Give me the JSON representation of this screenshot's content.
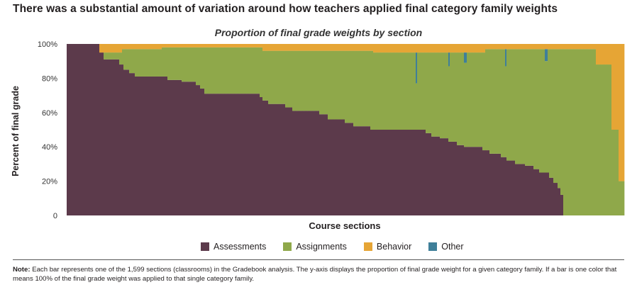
{
  "headline": "There was a substantial amount of variation around how teachers applied final category family weights",
  "chart_data": {
    "type": "bar",
    "stacked": true,
    "title": "Proportion of final grade weights by section",
    "xlabel": "Course sections",
    "ylabel": "Percent of final grade",
    "ylim": [
      0,
      100
    ],
    "yticks": [
      "0",
      "20%",
      "40%",
      "60%",
      "80%",
      "100%"
    ],
    "ytick_values": [
      0,
      20,
      40,
      60,
      80,
      100
    ],
    "grid": false,
    "legend_position": "bottom",
    "n_sections": 1599,
    "series": [
      {
        "name": "Assessments",
        "color": "#5c3a4b"
      },
      {
        "name": "Assignments",
        "color": "#8fa84a"
      },
      {
        "name": "Behavior",
        "color": "#e6a535"
      },
      {
        "name": "Other",
        "color": "#3f7f99"
      }
    ],
    "assessments_profile": [
      {
        "from": 0.0,
        "to": 0.058,
        "value": 100
      },
      {
        "from": 0.058,
        "to": 0.066,
        "value": 95
      },
      {
        "from": 0.066,
        "to": 0.094,
        "value": 91
      },
      {
        "from": 0.094,
        "to": 0.102,
        "value": 88
      },
      {
        "from": 0.102,
        "to": 0.112,
        "value": 85
      },
      {
        "from": 0.112,
        "to": 0.122,
        "value": 83
      },
      {
        "from": 0.122,
        "to": 0.18,
        "value": 81
      },
      {
        "from": 0.18,
        "to": 0.205,
        "value": 79
      },
      {
        "from": 0.205,
        "to": 0.232,
        "value": 78
      },
      {
        "from": 0.232,
        "to": 0.24,
        "value": 76
      },
      {
        "from": 0.24,
        "to": 0.248,
        "value": 74
      },
      {
        "from": 0.248,
        "to": 0.345,
        "value": 71
      },
      {
        "from": 0.345,
        "to": 0.352,
        "value": 69
      },
      {
        "from": 0.352,
        "to": 0.362,
        "value": 67
      },
      {
        "from": 0.362,
        "to": 0.392,
        "value": 65
      },
      {
        "from": 0.392,
        "to": 0.405,
        "value": 63
      },
      {
        "from": 0.405,
        "to": 0.452,
        "value": 61
      },
      {
        "from": 0.452,
        "to": 0.468,
        "value": 59
      },
      {
        "from": 0.468,
        "to": 0.5,
        "value": 56
      },
      {
        "from": 0.5,
        "to": 0.515,
        "value": 54
      },
      {
        "from": 0.515,
        "to": 0.545,
        "value": 52
      },
      {
        "from": 0.545,
        "to": 0.645,
        "value": 50
      },
      {
        "from": 0.645,
        "to": 0.655,
        "value": 48
      },
      {
        "from": 0.655,
        "to": 0.67,
        "value": 46
      },
      {
        "from": 0.67,
        "to": 0.685,
        "value": 45
      },
      {
        "from": 0.685,
        "to": 0.7,
        "value": 43
      },
      {
        "from": 0.7,
        "to": 0.712,
        "value": 41
      },
      {
        "from": 0.712,
        "to": 0.745,
        "value": 40
      },
      {
        "from": 0.745,
        "to": 0.758,
        "value": 38
      },
      {
        "from": 0.758,
        "to": 0.778,
        "value": 36
      },
      {
        "from": 0.778,
        "to": 0.79,
        "value": 34
      },
      {
        "from": 0.79,
        "to": 0.805,
        "value": 32
      },
      {
        "from": 0.805,
        "to": 0.822,
        "value": 30
      },
      {
        "from": 0.822,
        "to": 0.838,
        "value": 29
      },
      {
        "from": 0.838,
        "to": 0.848,
        "value": 27
      },
      {
        "from": 0.848,
        "to": 0.864,
        "value": 25
      },
      {
        "from": 0.864,
        "to": 0.874,
        "value": 22
      },
      {
        "from": 0.874,
        "to": 0.88,
        "value": 19
      },
      {
        "from": 0.88,
        "to": 0.885,
        "value": 16
      },
      {
        "from": 0.885,
        "to": 0.89,
        "value": 12
      },
      {
        "from": 0.89,
        "to": 1.0,
        "value": 0
      }
    ],
    "behavior_profile": [
      {
        "from": 0.0,
        "to": 0.058,
        "value": 0
      },
      {
        "from": 0.058,
        "to": 0.1,
        "value": 5
      },
      {
        "from": 0.1,
        "to": 0.17,
        "value": 3
      },
      {
        "from": 0.17,
        "to": 0.35,
        "value": 2
      },
      {
        "from": 0.35,
        "to": 0.55,
        "value": 4
      },
      {
        "from": 0.55,
        "to": 0.75,
        "value": 5
      },
      {
        "from": 0.75,
        "to": 0.95,
        "value": 3
      },
      {
        "from": 0.95,
        "to": 0.978,
        "value": 12
      },
      {
        "from": 0.978,
        "to": 0.99,
        "value": 50
      },
      {
        "from": 0.99,
        "to": 1.0,
        "value": 80
      }
    ],
    "other_spikes": [
      {
        "at": 0.628,
        "value": 18
      },
      {
        "at": 0.686,
        "value": 8
      },
      {
        "at": 0.715,
        "value": 6
      },
      {
        "at": 0.787,
        "value": 10
      },
      {
        "at": 0.86,
        "value": 7
      }
    ]
  },
  "legend": [
    "Assessments",
    "Assignments",
    "Behavior",
    "Other"
  ],
  "note": {
    "label": "Note:",
    "text": "Each bar represents one of the 1,599 sections (classrooms) in the Gradebook analysis. The y-axis displays the proportion of final grade weight for a given category family. If a bar is one color that means 100% of the final grade weight was applied to that single category family."
  }
}
